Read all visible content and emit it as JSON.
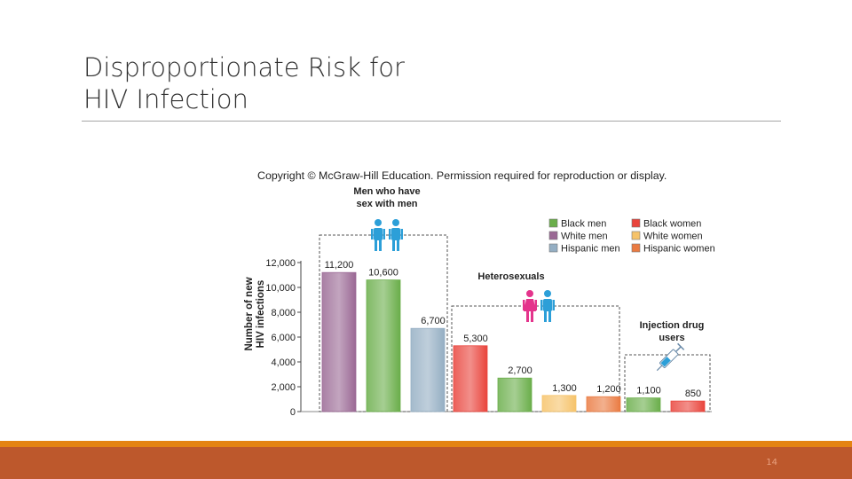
{
  "slide": {
    "title_line1": "Disproportionate Risk for",
    "title_line2": "HIV Infection",
    "page_number": "14"
  },
  "figure": {
    "copyright": "Copyright © McGraw-Hill Education. Permission required for reproduction or display."
  },
  "colors": {
    "black_men": "#6aae4a",
    "white_men": "#9a6894",
    "hispanic_men": "#94aec3",
    "black_women": "#e9443c",
    "white_women": "#f6c36a",
    "hispanic_women": "#ea7b42",
    "figure_icon": "#2c9fd8",
    "woman_icon": "#e4348c",
    "title_text": "#2f2f2f",
    "footer": "#bd582c",
    "footer_accent": "#e48312"
  },
  "chart_data": {
    "type": "bar",
    "title": "",
    "xlabel": "",
    "ylabel": "Number of new HIV infections",
    "ylim": [
      0,
      12000
    ],
    "yticks": [
      0,
      2000,
      4000,
      6000,
      8000,
      10000,
      12000
    ],
    "ytick_labels": [
      "0",
      "2,000",
      "4,000",
      "6,000",
      "8,000",
      "10,000",
      "12,000"
    ],
    "grid": false,
    "legend_position": "top-right",
    "legend": [
      {
        "label": "Black men",
        "color_key": "black_men"
      },
      {
        "label": "White men",
        "color_key": "white_men"
      },
      {
        "label": "Hispanic men",
        "color_key": "hispanic_men"
      },
      {
        "label": "Black women",
        "color_key": "black_women"
      },
      {
        "label": "White women",
        "color_key": "white_women"
      },
      {
        "label": "Hispanic women",
        "color_key": "hispanic_women"
      }
    ],
    "groups": [
      {
        "label_lines": [
          "Men who have",
          "sex with men"
        ],
        "icon": "two-men-icon",
        "bars": [
          {
            "series": "White men",
            "color_key": "white_men",
            "value": 11200,
            "label": "11,200"
          },
          {
            "series": "Black men",
            "color_key": "black_men",
            "value": 10600,
            "label": "10,600"
          },
          {
            "series": "Hispanic men",
            "color_key": "hispanic_men",
            "value": 6700,
            "label": "6,700"
          }
        ]
      },
      {
        "label_lines": [
          "Heterosexuals"
        ],
        "icon": "woman-and-man-icon",
        "bars": [
          {
            "series": "Black women",
            "color_key": "black_women",
            "value": 5300,
            "label": "5,300"
          },
          {
            "series": "Black men",
            "color_key": "black_men",
            "value": 2700,
            "label": "2,700"
          },
          {
            "series": "White women",
            "color_key": "white_women",
            "value": 1300,
            "label": "1,300"
          },
          {
            "series": "Hispanic women",
            "color_key": "hispanic_women",
            "value": 1200,
            "label": "1,200"
          }
        ]
      },
      {
        "label_lines": [
          "Injection drug",
          "users"
        ],
        "icon": "syringe-icon",
        "bars": [
          {
            "series": "Black men",
            "color_key": "black_men",
            "value": 1100,
            "label": "1,100"
          },
          {
            "series": "Black women",
            "color_key": "black_women",
            "value": 850,
            "label": "850"
          }
        ]
      }
    ]
  }
}
